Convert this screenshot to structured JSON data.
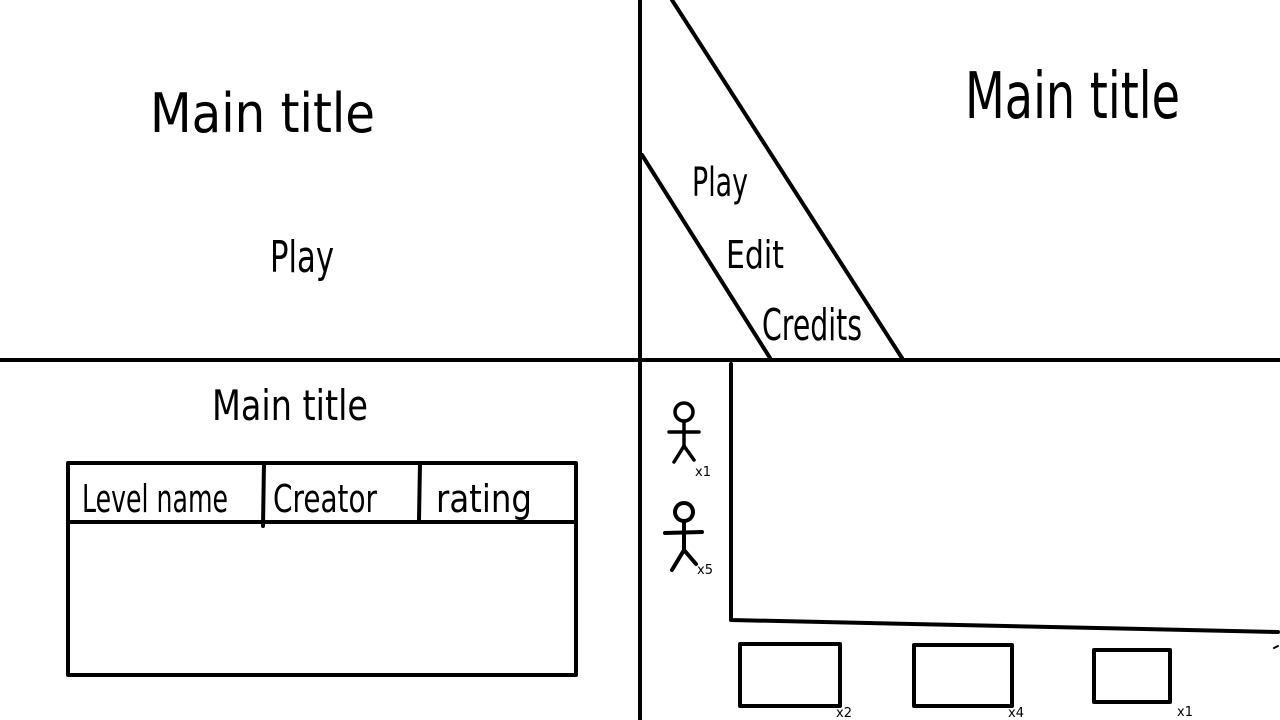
{
  "panels": {
    "title_screen": {
      "title": "Main title",
      "play_label": "Play"
    },
    "main_menu": {
      "title": "Main title",
      "items": [
        {
          "label": "Play"
        },
        {
          "label": "Edit"
        },
        {
          "label": "Credits"
        }
      ]
    },
    "level_browser": {
      "title": "Main title",
      "table": {
        "columns": [
          "Level name",
          "Creator",
          "rating"
        ],
        "rows": []
      }
    },
    "level_editor": {
      "characters": [
        {
          "icon": "stick-figure-icon",
          "count": "x1"
        },
        {
          "icon": "stick-figure-icon",
          "count": "x5"
        }
      ],
      "blocks": [
        {
          "icon": "block-icon",
          "count": "x2"
        },
        {
          "icon": "block-icon",
          "count": "x4"
        },
        {
          "icon": "block-icon",
          "count": "x1"
        }
      ]
    }
  }
}
